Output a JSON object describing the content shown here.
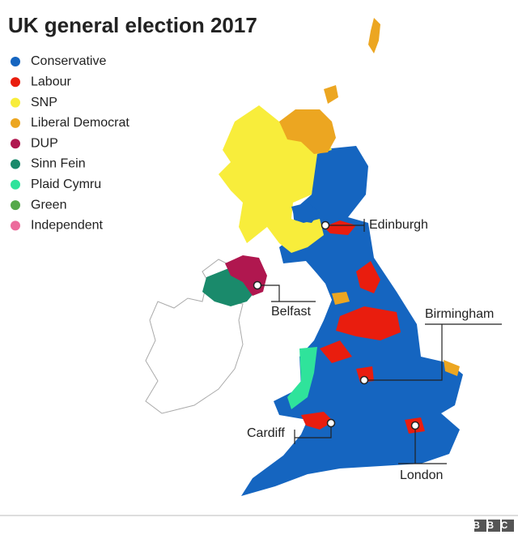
{
  "title": "UK general election 2017",
  "legend": [
    {
      "name": "Conservative",
      "color": "#1565c0"
    },
    {
      "name": "Labour",
      "color": "#e91d0e"
    },
    {
      "name": "SNP",
      "color": "#f8ed3b"
    },
    {
      "name": "Liberal Democrat",
      "color": "#eca621"
    },
    {
      "name": "DUP",
      "color": "#b0174f"
    },
    {
      "name": "Sinn Fein",
      "color": "#1a8a6b"
    },
    {
      "name": "Plaid Cymru",
      "color": "#2fe39b"
    },
    {
      "name": "Green",
      "color": "#55a84a"
    },
    {
      "name": "Independent",
      "color": "#ec6b9c"
    }
  ],
  "cities": [
    "Edinburgh",
    "Belfast",
    "Birmingham",
    "Cardiff",
    "London"
  ],
  "footer": "BBC"
}
